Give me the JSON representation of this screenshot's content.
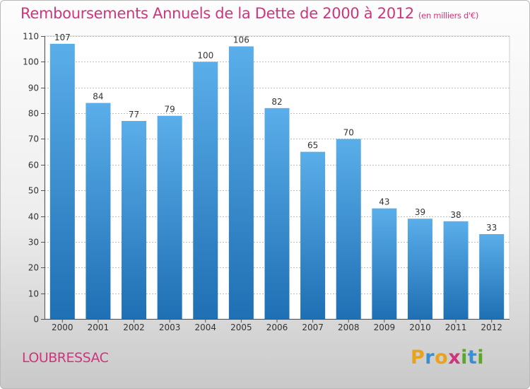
{
  "chart_data": {
    "type": "bar",
    "title": "Remboursements Annuels de la Dette de 2000 à 2012",
    "subtitle": "(en milliers d'€)",
    "categories": [
      "2000",
      "2001",
      "2002",
      "2003",
      "2004",
      "2005",
      "2006",
      "2007",
      "2008",
      "2009",
      "2010",
      "2011",
      "2012"
    ],
    "values": [
      107,
      84,
      77,
      79,
      100,
      106,
      82,
      65,
      70,
      43,
      39,
      38,
      33
    ],
    "ylim": [
      0,
      110
    ],
    "yticks": [
      0,
      10,
      20,
      30,
      40,
      50,
      60,
      70,
      80,
      90,
      100,
      110
    ],
    "grid": true,
    "bar_color_top": "#5aaee9",
    "bar_color_bottom": "#1f6fb4"
  },
  "commune": "LOUBRESSAC",
  "logo": {
    "text": "Proxiti",
    "letters": [
      {
        "ch": "P",
        "color": "#e8a21b"
      },
      {
        "ch": "r",
        "color": "#3b8fd0"
      },
      {
        "ch": "o",
        "color": "#e8a21b"
      },
      {
        "ch": "x",
        "color": "#d0347a"
      },
      {
        "ch": "i",
        "color": "#5aa72a"
      },
      {
        "ch": "t",
        "color": "#3b8fd0"
      },
      {
        "ch": "i",
        "color": "#5aa72a"
      }
    ]
  }
}
